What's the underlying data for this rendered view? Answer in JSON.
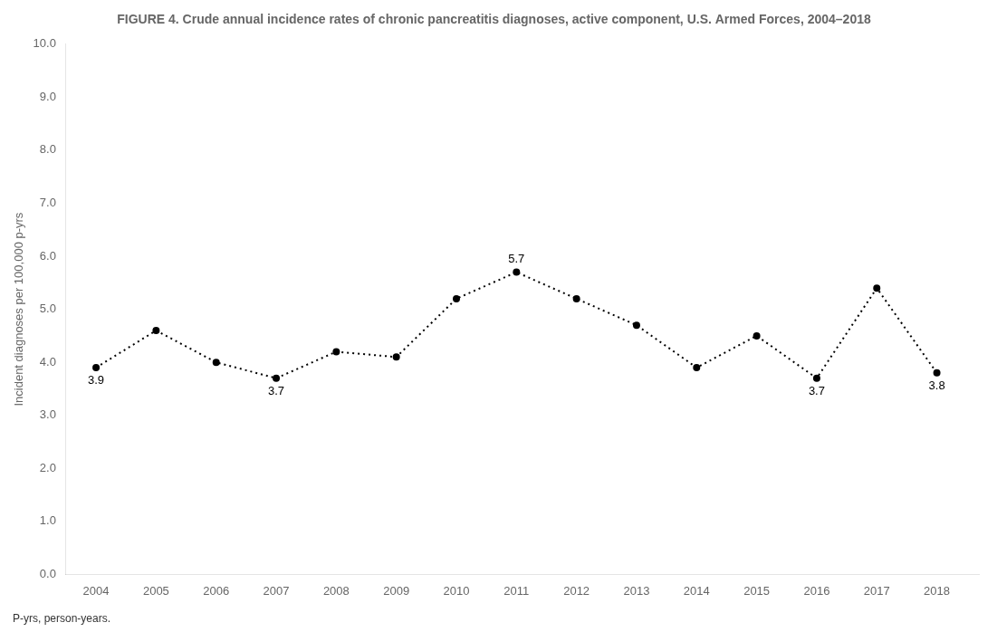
{
  "chart_data": {
    "type": "line",
    "title": "FIGURE 4. Crude annual incidence rates of chronic pancreatitis diagnoses, active component, U.S. Armed Forces, 2004–2018",
    "ylabel": "Incident diagnoses per 100,000 p-yrs",
    "footnote": "P-yrs, person-years.",
    "x": [
      2004,
      2005,
      2006,
      2007,
      2008,
      2009,
      2010,
      2011,
      2012,
      2013,
      2014,
      2015,
      2016,
      2017,
      2018
    ],
    "values": [
      3.9,
      4.6,
      4.0,
      3.7,
      4.2,
      4.1,
      5.2,
      5.7,
      5.2,
      4.7,
      3.9,
      4.5,
      3.7,
      5.4,
      3.8
    ],
    "color": "#000000",
    "line_style": "dotted",
    "marker": "circle",
    "xlim": [
      2003.5,
      2018.7
    ],
    "xticks": [
      2004,
      2005,
      2006,
      2007,
      2008,
      2009,
      2010,
      2011,
      2012,
      2013,
      2014,
      2015,
      2016,
      2017,
      2018
    ],
    "ylim": [
      0.0,
      10.0
    ],
    "yticks": [
      {
        "value": 0,
        "label": "0.0"
      },
      {
        "value": 1,
        "label": "1.0"
      },
      {
        "value": 2,
        "label": "2.0"
      },
      {
        "value": 3,
        "label": "3.0"
      },
      {
        "value": 4,
        "label": "4.0"
      },
      {
        "value": 5,
        "label": "5.0"
      },
      {
        "value": 6,
        "label": "6.0"
      },
      {
        "value": 7,
        "label": "7.0"
      },
      {
        "value": 8,
        "label": "8.0"
      },
      {
        "value": 9,
        "label": "9.0"
      },
      {
        "value": 10,
        "label": "10.0"
      }
    ],
    "grid": false,
    "annotations": [
      {
        "x": 2004,
        "y": 3.9,
        "text": "3.9"
      },
      {
        "x": 2007,
        "y": 3.7,
        "text": "3.7"
      },
      {
        "x": 2011,
        "y": 5.7,
        "text": "5.7"
      },
      {
        "x": 2016,
        "y": 3.7,
        "text": "3.7"
      },
      {
        "x": 2018,
        "y": 3.8,
        "text": "3.8"
      }
    ]
  }
}
